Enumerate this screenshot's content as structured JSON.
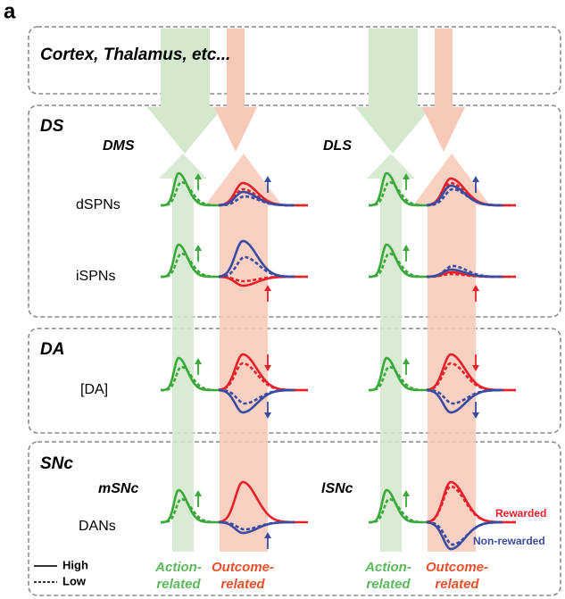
{
  "panel_label": "a",
  "regions": {
    "input": "Cortex, Thalamus, etc...",
    "ds": "DS",
    "da": "DA",
    "snc": "SNc"
  },
  "subregions": {
    "dms": "DMS",
    "dls": "DLS",
    "msnc": "mSNc",
    "lsnc": "lSNc"
  },
  "rows": {
    "dspn": "dSPNs",
    "ispn": "iSPNs",
    "da": "[DA]",
    "dan": "DANs"
  },
  "legend": {
    "rewarded": "Rewarded",
    "non_rewarded": "Non-rewarded",
    "high": "High",
    "low": "Low"
  },
  "streams": {
    "action": [
      "Action-",
      "related"
    ],
    "outcome": [
      "Outcome-",
      "related"
    ]
  }
}
